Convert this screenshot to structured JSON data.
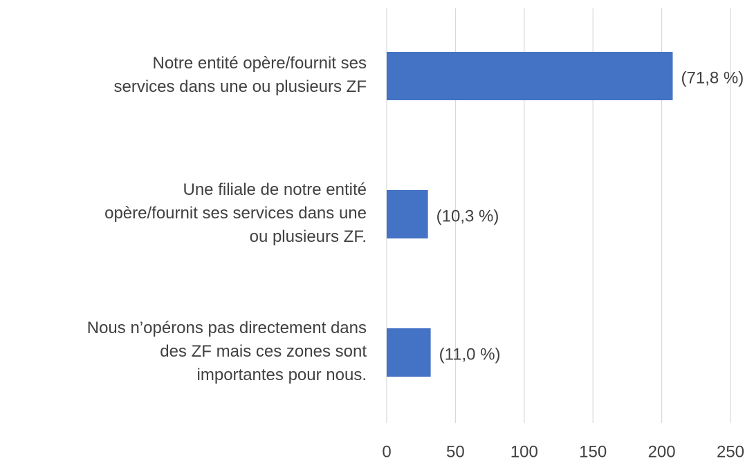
{
  "chart_data": {
    "type": "barh",
    "categories": [
      [
        "Notre entité opère/fournit ses",
        "services dans une ou plusieurs ZF"
      ],
      [
        "Une filiale de notre entité",
        "opère/fournit ses services dans une",
        "ou plusieurs ZF."
      ],
      [
        "Nous n’opérons pas directement dans",
        "des ZF mais ces zones sont",
        "importantes pour nous."
      ]
    ],
    "values": [
      208,
      30,
      32
    ],
    "annotations": [
      "(71,8 %)",
      "(10,3 %)",
      "(11,0 %)"
    ],
    "color": "#4472c4",
    "xlim": [
      0,
      250
    ],
    "xticks": [
      0,
      50,
      100,
      150,
      200,
      250
    ],
    "grid": true
  }
}
